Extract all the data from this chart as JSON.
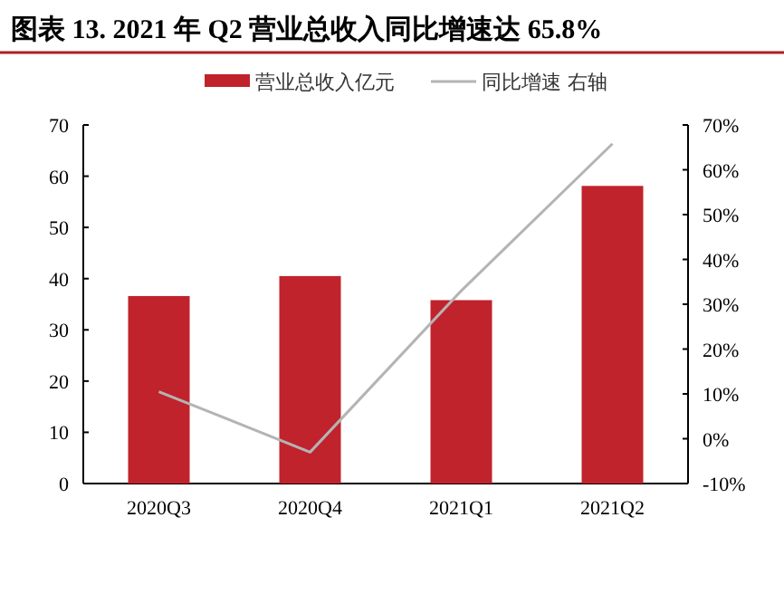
{
  "chart_data": {
    "type": "bar",
    "title": "图表 13. 2021 年 Q2 营业总收入同比增速达 65.8%",
    "categories": [
      "2020Q3",
      "2020Q4",
      "2021Q1",
      "2021Q2"
    ],
    "series": [
      {
        "name": "营业总收入亿元",
        "color": "#c0232c",
        "values": [
          36.6,
          40.5,
          35.8,
          58.1
        ]
      },
      {
        "name": "同比增速 右轴",
        "type": "line",
        "axis": "y2",
        "color": "#b4b4b4",
        "values": [
          10.5,
          -3.0,
          33,
          65.8
        ]
      }
    ],
    "ylim": [
      0,
      70
    ],
    "yticks": [
      0,
      10,
      20,
      30,
      40,
      50,
      60,
      70
    ],
    "y2lim": [
      -10,
      70
    ],
    "y2ticks": [
      {
        "value": -10,
        "label": "-10%"
      },
      {
        "value": 0,
        "label": "0%"
      },
      {
        "value": 10,
        "label": "10%"
      },
      {
        "value": 20,
        "label": "20%"
      },
      {
        "value": 30,
        "label": "30%"
      },
      {
        "value": 40,
        "label": "40%"
      },
      {
        "value": 50,
        "label": "50%"
      },
      {
        "value": 60,
        "label": "60%"
      },
      {
        "value": 70,
        "label": "70%"
      }
    ],
    "legend": "top",
    "grid": false
  }
}
